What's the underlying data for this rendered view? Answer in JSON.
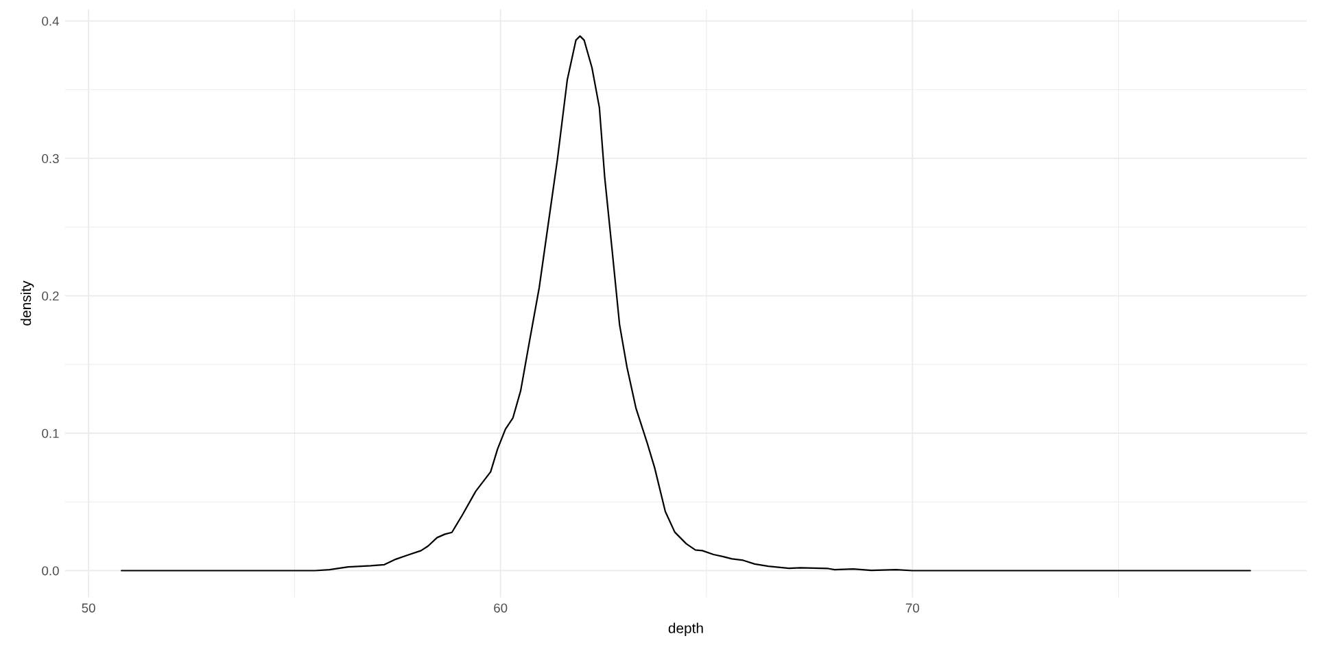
{
  "chart_data": {
    "type": "line",
    "xlabel": "depth",
    "ylabel": "density",
    "x": [
      50.8,
      54.5,
      55.5,
      55.85,
      56.3,
      56.85,
      57.18,
      57.46,
      57.74,
      58.07,
      58.24,
      58.46,
      58.65,
      58.82,
      59.07,
      59.4,
      59.76,
      59.93,
      60.12,
      60.3,
      60.49,
      60.71,
      60.94,
      61.2,
      61.38,
      61.62,
      61.83,
      61.93,
      62.03,
      62.22,
      62.4,
      62.53,
      62.71,
      62.89,
      63.07,
      63.29,
      63.56,
      63.74,
      64.0,
      64.23,
      64.51,
      64.73,
      64.9,
      65.17,
      65.39,
      65.62,
      65.89,
      66.17,
      66.5,
      67.0,
      67.28,
      67.95,
      68.11,
      68.56,
      69.0,
      69.61,
      70.0,
      78.2
    ],
    "series": [
      {
        "color": "#000000",
        "values": [
          0,
          0,
          0,
          0.0007,
          0.0027,
          0.0035,
          0.0043,
          0.0083,
          0.0112,
          0.0145,
          0.0178,
          0.024,
          0.0265,
          0.0278,
          0.0403,
          0.0578,
          0.0719,
          0.0886,
          0.1029,
          0.111,
          0.131,
          0.168,
          0.206,
          0.261,
          0.299,
          0.357,
          0.386,
          0.389,
          0.386,
          0.366,
          0.337,
          0.286,
          0.233,
          0.179,
          0.148,
          0.118,
          0.093,
          0.075,
          0.043,
          0.028,
          0.0195,
          0.015,
          0.0145,
          0.0117,
          0.0103,
          0.0085,
          0.0075,
          0.0048,
          0.0032,
          0.0017,
          0.002,
          0.0015,
          0.0007,
          0.0012,
          0.0002,
          0.0007,
          0,
          0
        ]
      }
    ],
    "xlim": [
      49.43,
      79.57
    ],
    "ylim": [
      -0.0195,
      0.4085
    ],
    "xticks": [
      50,
      {
        "value": 55,
        "label": null
      },
      60,
      {
        "value": 65,
        "label": null
      },
      70,
      {
        "value": 75,
        "label": null
      }
    ],
    "yticks": [
      {
        "value": 0,
        "label": "0.0"
      },
      {
        "value": 0.05,
        "label": null
      },
      {
        "value": 0.1,
        "label": "0.1"
      },
      {
        "value": 0.15,
        "label": null
      },
      {
        "value": 0.2,
        "label": "0.2"
      },
      {
        "value": 0.25,
        "label": null
      },
      {
        "value": 0.3,
        "label": "0.3"
      },
      {
        "value": 0.35,
        "label": null
      },
      {
        "value": 0.4,
        "label": "0.4"
      }
    ],
    "grid": true,
    "line_style": "solid"
  }
}
